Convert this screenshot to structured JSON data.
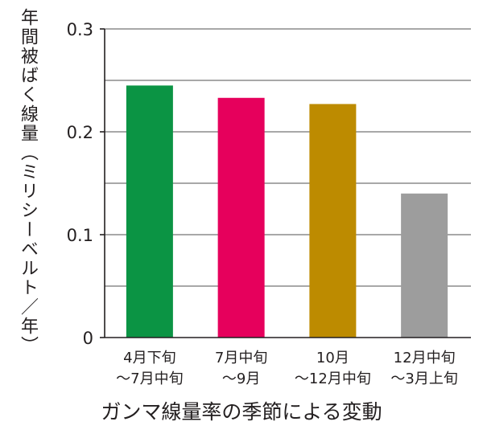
{
  "chart_data": {
    "type": "bar",
    "categories": [
      [
        "4月下旬",
        "〜7月中旬"
      ],
      [
        "7月中旬",
        "〜9月"
      ],
      [
        "10月",
        "〜12月中旬"
      ],
      [
        "12月中旬",
        "〜3月上旬"
      ]
    ],
    "values": [
      0.245,
      0.233,
      0.227,
      0.14
    ],
    "colors": [
      "#0b9444",
      "#e6005c",
      "#bd8b00",
      "#9d9d9d"
    ],
    "ylabel": "年間被ばく線量（ミリシーベルト／年）",
    "xlabel": "ガンマ線量率の季節による変動",
    "ylim": [
      0,
      0.3
    ],
    "yticks": [
      0,
      0.1,
      0.2,
      0.3
    ],
    "ytick_labels": [
      "0",
      "0.1",
      "0.2",
      "0.3"
    ],
    "minor_grid_step": 0.05,
    "grid": true
  }
}
